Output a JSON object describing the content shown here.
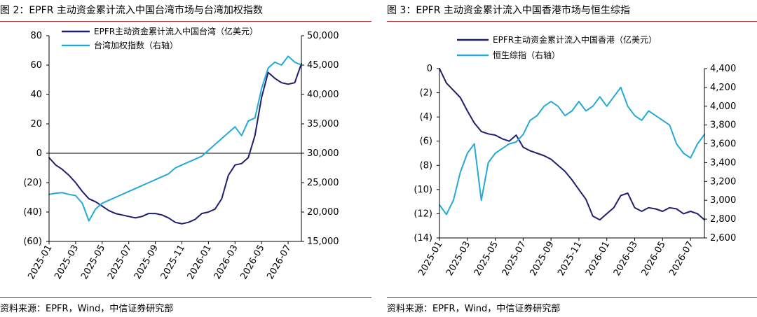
{
  "left_panel": {
    "title": "图 2：EPFR 主动资金累计流入中国台湾市场与台湾加权指数",
    "source": "资料来源：EPFR，Wind，中信证券研究部"
  },
  "right_panel": {
    "title": "图 3：EPFR 主动资金累计流入中国香港市场与恒生综指",
    "source": "资料来源：EPFR，Wind，中信证券研究部"
  },
  "colors": {
    "flow": "#1f1f6e",
    "index": "#25a9d6",
    "rule": "#c0272d",
    "axis": "#000000"
  },
  "chart_data": [
    {
      "type": "line",
      "x_ticks": [
        "2025-01",
        "2025-03",
        "2025-05",
        "2025-07",
        "2025-09",
        "2025-11",
        "2026-01",
        "2026-03",
        "2026-05",
        "2026-07"
      ],
      "x_range": [
        0,
        19
      ],
      "ylim_left": [
        -60,
        80
      ],
      "yticks_left": [
        80,
        60,
        40,
        20,
        0,
        -20,
        -40,
        -60
      ],
      "ytick_labels_left": [
        "80",
        "60",
        "40",
        "20",
        "0",
        "(20)",
        "(40)",
        "(60)"
      ],
      "ylim_right": [
        15000,
        50000
      ],
      "yticks_right": [
        50000,
        45000,
        40000,
        35000,
        30000,
        25000,
        20000,
        15000
      ],
      "ytick_labels_right": [
        "50,000",
        "45,000",
        "40,000",
        "35,000",
        "30,000",
        "25,000",
        "20,000",
        "15,000"
      ],
      "zero_line": 0,
      "legend": "top-left",
      "series": [
        {
          "name": "EPFR主动资金累计流入中国台湾（亿美元）",
          "axis": "left",
          "x": [
            0,
            0.5,
            1,
            1.5,
            2,
            2.5,
            3,
            3.5,
            4,
            4.5,
            5,
            5.5,
            6,
            6.5,
            7,
            7.5,
            8,
            8.5,
            9,
            9.5,
            10,
            10.5,
            11,
            11.5,
            12,
            12.5,
            13,
            13.5,
            14,
            14.5,
            15,
            15.5,
            16,
            16.5,
            17,
            17.5,
            18,
            18.5,
            19
          ],
          "values": [
            -3,
            -8,
            -11,
            -15,
            -20,
            -26,
            -31,
            -33,
            -36,
            -39,
            -41,
            -42,
            -43,
            -44,
            -43,
            -41,
            -41,
            -42,
            -44,
            -47,
            -48,
            -47,
            -45,
            -41,
            -40,
            -38,
            -31,
            -15,
            -8,
            -7,
            -3,
            12,
            38,
            55,
            51,
            48,
            47,
            48,
            61
          ]
        },
        {
          "name": "台湾加权指数（右轴）",
          "axis": "right",
          "x": [
            0,
            0.5,
            1,
            1.5,
            2,
            2.5,
            3,
            3.5,
            4,
            4.5,
            5,
            5.5,
            6,
            6.5,
            7,
            7.5,
            8,
            8.5,
            9,
            9.5,
            10,
            10.5,
            11,
            11.5,
            12,
            12.5,
            13,
            13.5,
            14,
            14.5,
            15,
            15.5,
            16,
            16.5,
            17,
            17.5,
            18,
            18.5,
            19
          ],
          "values": [
            23000,
            23200,
            23300,
            23000,
            22800,
            21500,
            18500,
            20500,
            21500,
            22000,
            22500,
            23000,
            23500,
            24000,
            24500,
            25000,
            25500,
            26000,
            26500,
            27500,
            28000,
            28500,
            29000,
            29500,
            30500,
            31500,
            32500,
            33500,
            34500,
            33000,
            35500,
            36000,
            41000,
            44500,
            45500,
            45000,
            46500,
            45500,
            45000
          ]
        }
      ]
    },
    {
      "type": "line",
      "x_ticks": [
        "2025-01",
        "2025-03",
        "2025-05",
        "2025-07",
        "2025-09",
        "2025-11",
        "2026-01",
        "2026-03",
        "2026-05",
        "2026-07"
      ],
      "x_range": [
        0,
        19
      ],
      "ylim_left": [
        -14,
        0
      ],
      "yticks_left": [
        0,
        -2,
        -4,
        -6,
        -8,
        -10,
        -12,
        -14
      ],
      "ytick_labels_left": [
        "0",
        "(2)",
        "(4)",
        "(6)",
        "(8)",
        "(10)",
        "(12)",
        "(14)"
      ],
      "ylim_right": [
        2600,
        4400
      ],
      "yticks_right": [
        4400,
        4200,
        4000,
        3800,
        3600,
        3400,
        3200,
        3000,
        2800,
        2600
      ],
      "ytick_labels_right": [
        "4,400",
        "4,200",
        "4,000",
        "3,800",
        "3,600",
        "3,400",
        "3,200",
        "3,000",
        "2,800",
        "2,600"
      ],
      "legend": "top-center",
      "series": [
        {
          "name": "EPFR主动资金累计流入中国香港（亿美元）",
          "axis": "left",
          "x": [
            0,
            0.5,
            1,
            1.5,
            2,
            2.5,
            3,
            3.5,
            4,
            4.5,
            5,
            5.5,
            6,
            6.5,
            7,
            7.5,
            8,
            8.5,
            9,
            9.5,
            10,
            10.5,
            11,
            11.5,
            12,
            12.5,
            13,
            13.5,
            14,
            14.5,
            15,
            15.5,
            16,
            16.5,
            17,
            17.5,
            18,
            18.5,
            19
          ],
          "values": [
            0,
            -1.2,
            -1.8,
            -2.4,
            -3.5,
            -4.5,
            -5.2,
            -5.4,
            -5.5,
            -5.8,
            -6.0,
            -5.5,
            -6.5,
            -6.8,
            -7.0,
            -7.2,
            -7.5,
            -8.0,
            -8.5,
            -9.2,
            -10.0,
            -10.8,
            -12.2,
            -12.5,
            -12.0,
            -11.5,
            -10.5,
            -10.3,
            -11.5,
            -11.8,
            -11.5,
            -11.6,
            -11.8,
            -11.5,
            -11.6,
            -12.0,
            -11.8,
            -12.0,
            -12.5
          ]
        },
        {
          "name": "恒生综指（右轴）",
          "axis": "right",
          "x": [
            0,
            0.5,
            1,
            1.5,
            2,
            2.5,
            3,
            3.5,
            4,
            4.5,
            5,
            5.5,
            6,
            6.5,
            7,
            7.5,
            8,
            8.5,
            9,
            9.5,
            10,
            10.5,
            11,
            11.5,
            12,
            12.5,
            13,
            13.5,
            14,
            14.5,
            15,
            15.5,
            16,
            16.5,
            17,
            17.5,
            18,
            18.5,
            19
          ],
          "values": [
            2950,
            2850,
            3000,
            3300,
            3500,
            3600,
            3000,
            3400,
            3500,
            3550,
            3600,
            3620,
            3700,
            3850,
            3900,
            4000,
            4050,
            4000,
            3900,
            3950,
            4050,
            3950,
            4000,
            4100,
            4000,
            4100,
            4200,
            4000,
            3900,
            3850,
            3950,
            3900,
            3850,
            3800,
            3600,
            3500,
            3450,
            3600,
            3700
          ]
        }
      ]
    }
  ]
}
